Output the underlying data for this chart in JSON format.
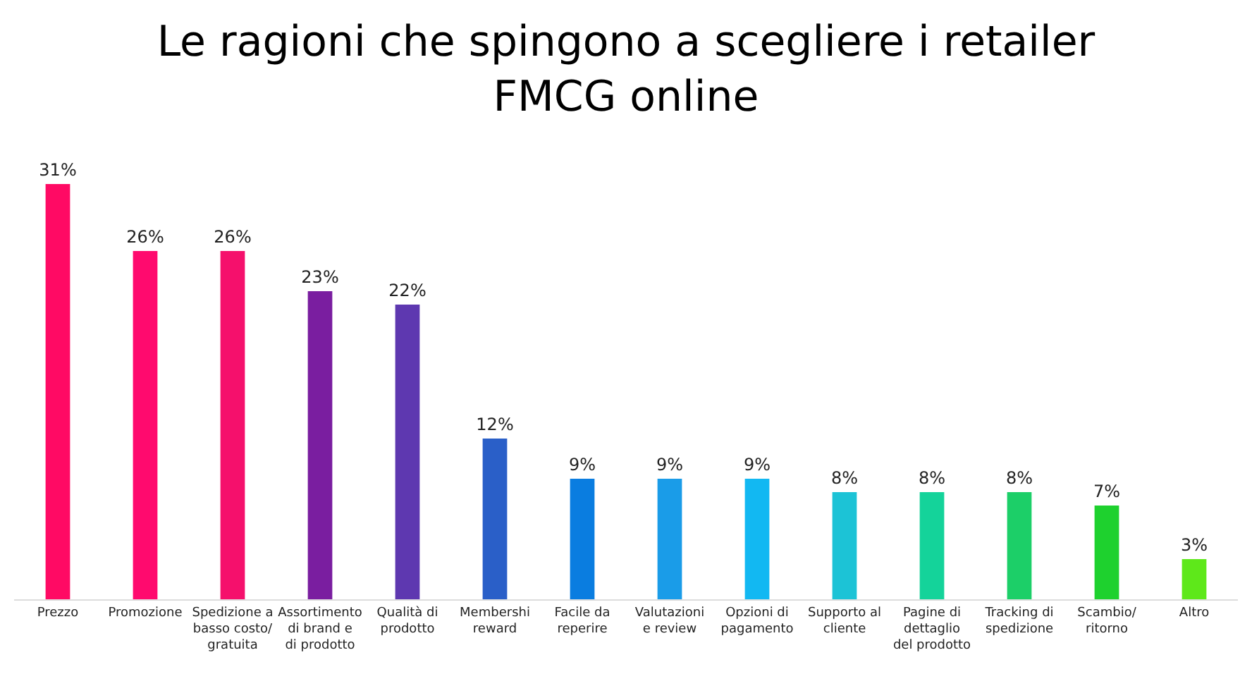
{
  "chart_data": {
    "type": "bar",
    "title": "Le ragioni che spingono a scegliere i retailer FMCG online",
    "categories": [
      "Prezzo",
      "Promozione",
      "Spedizione a basso costo/ gratuita",
      "Assortimento di brand e di prodotto",
      "Qualità di prodotto",
      "Membershi reward",
      "Facile da reperire",
      "Valutazioni e review",
      "Opzioni di pagamento",
      "Supporto al cliente",
      "Pagine di dettaglio del prodotto",
      "Tracking di spedizione",
      "Scambio/ ritorno",
      "Altro"
    ],
    "values": [
      31,
      26,
      26,
      23,
      22,
      12,
      9,
      9,
      9,
      8,
      8,
      8,
      7,
      3
    ],
    "value_labels": [
      "31%",
      "26%",
      "26%",
      "23%",
      "22%",
      "12%",
      "9%",
      "9%",
      "9%",
      "8%",
      "8%",
      "8%",
      "7%",
      "3%"
    ],
    "colors": [
      "#ff0a64",
      "#ff0a6e",
      "#f5106c",
      "#7a1ea0",
      "#5e38b0",
      "#2a5fc8",
      "#0a7de0",
      "#1a9ce8",
      "#12b8f2",
      "#1cc3d6",
      "#14d39a",
      "#1ccf68",
      "#1ed12e",
      "#5ee81a"
    ],
    "legend": false
  }
}
